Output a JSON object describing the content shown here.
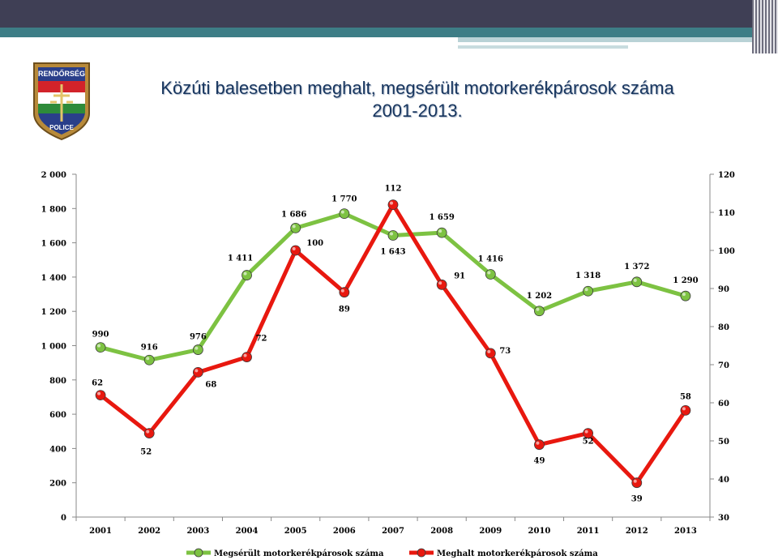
{
  "header": {
    "title_line1": "Közúti balesetben meghalt, megsérült motorkerékpárosok száma",
    "title_line2": "2001-2013.",
    "logo_text_top": "RENDŐRSÉG",
    "logo_text_bottom": "POLICE"
  },
  "colors": {
    "injured": "#7dc242",
    "killed": "#e8180f",
    "title": "#17355e",
    "topbar": "#3f3f55",
    "teal": "#3d7d86"
  },
  "chart_data": {
    "type": "line",
    "categories": [
      "2001",
      "2002",
      "2003",
      "2004",
      "2005",
      "2006",
      "2007",
      "2008",
      "2009",
      "2010",
      "2011",
      "2012",
      "2013"
    ],
    "series": [
      {
        "name": "Megsérült motorkerékpárosok száma",
        "axis": "left",
        "values": [
          990,
          916,
          976,
          1411,
          1686,
          1770,
          1643,
          1659,
          1416,
          1202,
          1318,
          1372,
          1290
        ],
        "labels": [
          "990",
          "916",
          "976",
          "1 411",
          "1 686",
          "1 770",
          "1 643",
          "1 659",
          "1 416",
          "1 202",
          "1 318",
          "1 372",
          "1 290"
        ]
      },
      {
        "name": "Meghalt motorkerékpárosok száma",
        "axis": "right",
        "values": [
          62,
          52,
          68,
          72,
          100,
          89,
          112,
          91,
          73,
          49,
          52,
          39,
          58
        ],
        "labels": [
          "62",
          "52",
          "68",
          "72",
          "100",
          "89",
          "112",
          "91",
          "73",
          "49",
          "52",
          "39",
          "58"
        ]
      }
    ],
    "y_left": {
      "lim": [
        0,
        2000
      ],
      "ticks": [
        0,
        200,
        400,
        600,
        800,
        1000,
        1200,
        1400,
        1600,
        1800,
        2000
      ],
      "tick_labels": [
        "0",
        "200",
        "400",
        "600",
        "800",
        "1 000",
        "1 200",
        "1 400",
        "1 600",
        "1 800",
        "2 000"
      ]
    },
    "y_right": {
      "lim": [
        30,
        120
      ],
      "ticks": [
        30,
        40,
        50,
        60,
        70,
        80,
        90,
        100,
        110,
        120
      ],
      "tick_labels": [
        "30",
        "40",
        "50",
        "60",
        "70",
        "80",
        "90",
        "100",
        "110",
        "120"
      ]
    },
    "grid": false,
    "legend_position": "bottom"
  }
}
